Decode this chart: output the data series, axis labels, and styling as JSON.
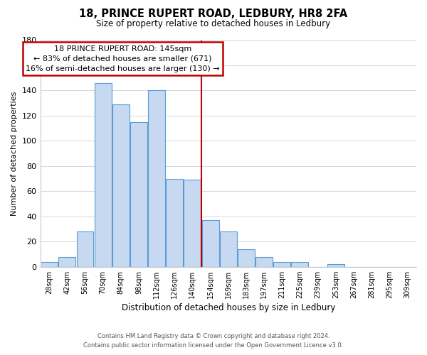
{
  "title": "18, PRINCE RUPERT ROAD, LEDBURY, HR8 2FA",
  "subtitle": "Size of property relative to detached houses in Ledbury",
  "xlabel": "Distribution of detached houses by size in Ledbury",
  "ylabel": "Number of detached properties",
  "bar_labels": [
    "28sqm",
    "42sqm",
    "56sqm",
    "70sqm",
    "84sqm",
    "98sqm",
    "112sqm",
    "126sqm",
    "140sqm",
    "154sqm",
    "169sqm",
    "183sqm",
    "197sqm",
    "211sqm",
    "225sqm",
    "239sqm",
    "253sqm",
    "267sqm",
    "281sqm",
    "295sqm",
    "309sqm"
  ],
  "bar_values": [
    4,
    8,
    28,
    146,
    129,
    115,
    140,
    70,
    69,
    37,
    28,
    14,
    8,
    4,
    4,
    0,
    2,
    0,
    0,
    0,
    0
  ],
  "bar_color": "#c6d9f0",
  "bar_edge_color": "#5b9bd5",
  "annotation_title": "18 PRINCE RUPERT ROAD: 145sqm",
  "annotation_line1": "← 83% of detached houses are smaller (671)",
  "annotation_line2": "16% of semi-detached houses are larger (130) →",
  "annotation_box_color": "#ffffff",
  "annotation_box_edge": "#c00000",
  "ref_line_color": "#c00000",
  "ylim": [
    0,
    180
  ],
  "footer1": "Contains HM Land Registry data © Crown copyright and database right 2024.",
  "footer2": "Contains public sector information licensed under the Open Government Licence v3.0."
}
